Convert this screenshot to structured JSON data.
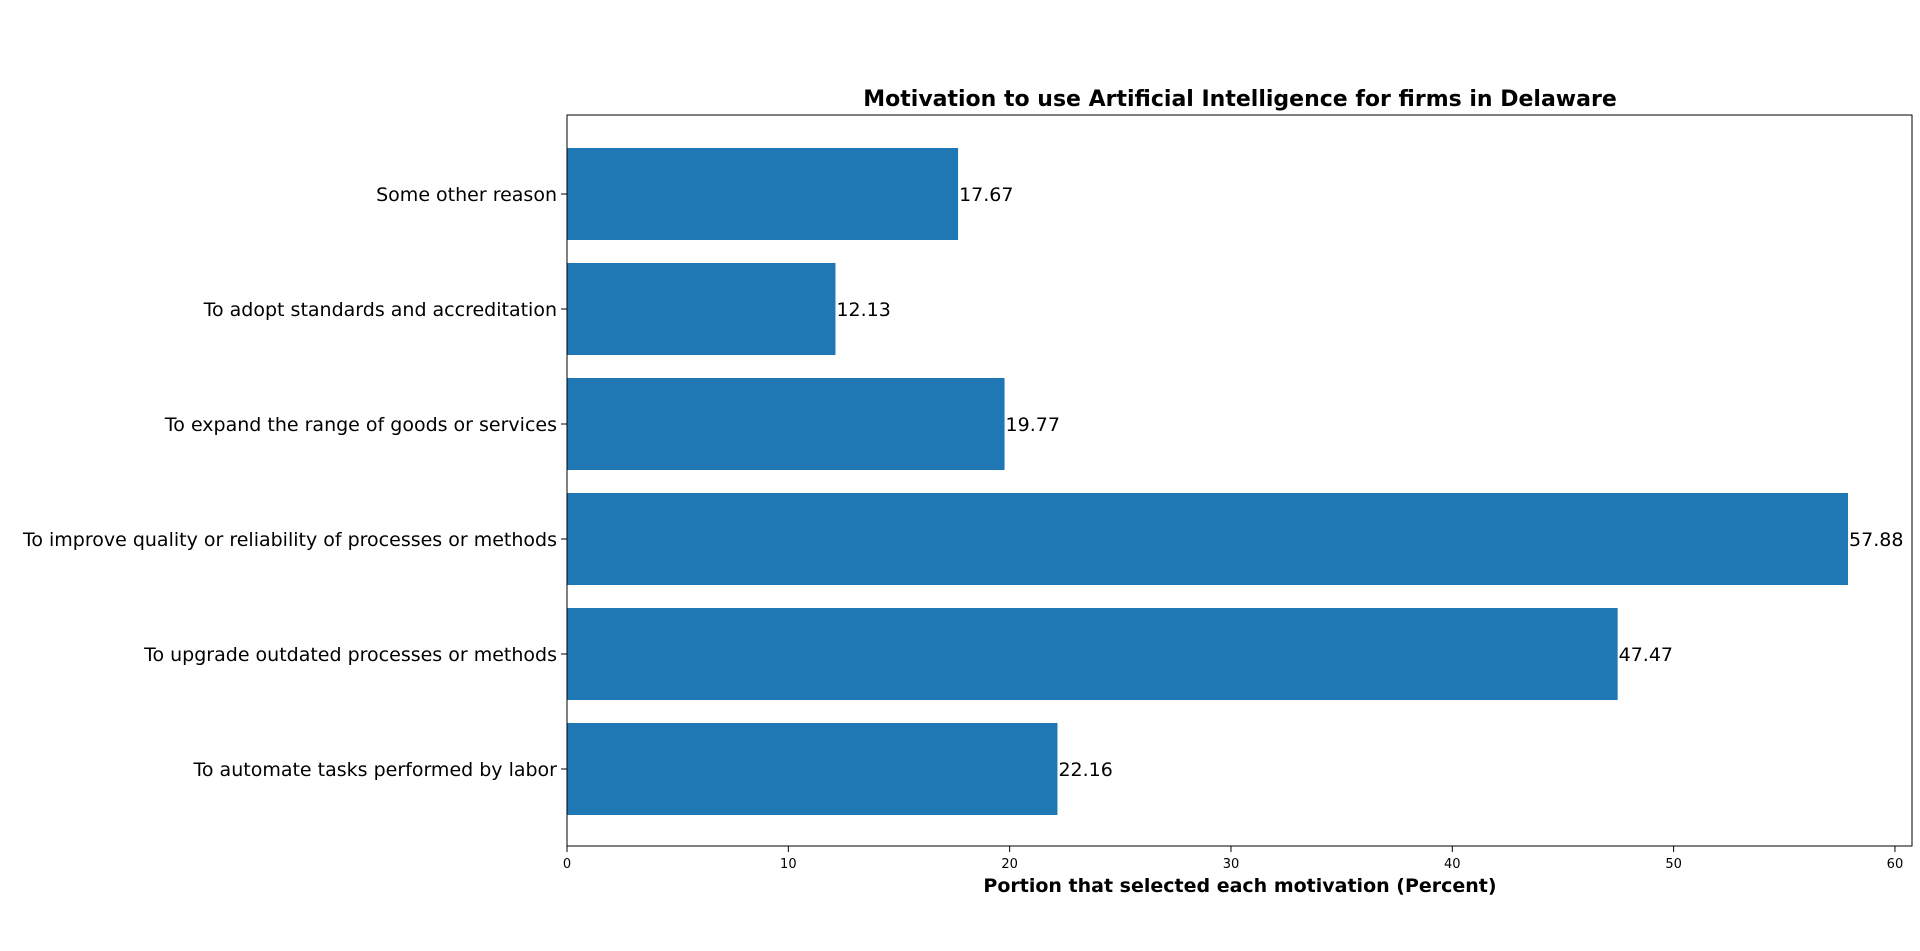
{
  "chart_data": {
    "type": "bar",
    "orientation": "horizontal",
    "title": "Motivation to use Artificial Intelligence for firms in Delaware",
    "xlabel": "Portion that selected each motivation (Percent)",
    "ylabel": "",
    "categories": [
      "To automate tasks performed by labor",
      "To upgrade outdated processes or methods",
      "To improve quality or reliability of processes or methods",
      "To expand the range of goods or services",
      "To adopt standards and accreditation",
      "Some other reason"
    ],
    "values": [
      22.16,
      47.47,
      57.88,
      19.77,
      12.13,
      17.67
    ],
    "value_labels": [
      "22.16",
      "47.47",
      "57.88",
      "19.77",
      "12.13",
      "17.67"
    ],
    "xlim": [
      0,
      60.77
    ],
    "xticks": [
      0,
      10,
      20,
      30,
      40,
      50,
      60
    ],
    "xtick_labels": [
      "0",
      "10",
      "20",
      "30",
      "40",
      "50",
      "60"
    ],
    "bar_color": "#1f77b4",
    "grid": false,
    "legend": "none"
  }
}
